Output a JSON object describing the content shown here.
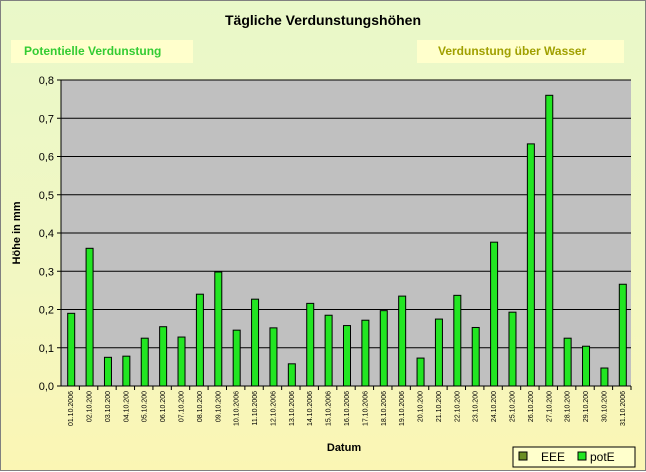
{
  "chart_data": {
    "type": "bar",
    "title": "Tägliche Verdunstungshöhen",
    "xlabel": "Datum",
    "ylabel": "Höhe in mm",
    "ylim": [
      0,
      0.8
    ],
    "ytick_step": 0.1,
    "ytick_labels": [
      "0,0",
      "0,1",
      "0,2",
      "0,3",
      "0,4",
      "0,5",
      "0,6",
      "0,7",
      "0,8"
    ],
    "grid": true,
    "legend_position": "bottom-right",
    "categories": [
      "01.10.2006",
      "02.10.200",
      "03.10.200",
      "04.10.200",
      "05.10.200",
      "06.10.200",
      "07.10.200",
      "08.10.200",
      "09.10.200",
      "10.10.2006",
      "11.10.2006",
      "12.10.2006",
      "13.10.2006",
      "14.10.2006",
      "15.10.2006",
      "16.10.2006",
      "17.10.2006",
      "18.10.2006",
      "19.10.2006",
      "20.10.200",
      "21.10.200",
      "22.10.200",
      "23.10.200",
      "24.10.200",
      "25.10.200",
      "26.10.200",
      "27.10.200",
      "28.10.200",
      "29.10.200",
      "30.10.200",
      "31.10.2006"
    ],
    "series": [
      {
        "name": "EEE",
        "color": "#6b8e23",
        "values": [
          0,
          0,
          0,
          0,
          0,
          0,
          0,
          0,
          0,
          0,
          0,
          0,
          0,
          0,
          0,
          0,
          0,
          0,
          0,
          0,
          0,
          0,
          0,
          0,
          0,
          0,
          0,
          0,
          0,
          0,
          0
        ]
      },
      {
        "name": "potE",
        "color": "#22e622",
        "values": [
          0.19,
          0.36,
          0.075,
          0.078,
          0.125,
          0.155,
          0.128,
          0.24,
          0.298,
          0.146,
          0.227,
          0.152,
          0.058,
          0.216,
          0.185,
          0.158,
          0.172,
          0.197,
          0.235,
          0.073,
          0.175,
          0.237,
          0.153,
          0.376,
          0.193,
          0.633,
          0.76,
          0.125,
          0.104,
          0.047,
          0.266
        ]
      }
    ],
    "annotations": [
      {
        "text": "Potentielle Verdunstung",
        "color": "#33cc33",
        "background": "#ffffcc"
      },
      {
        "text": "Verdunstung über Wasser",
        "color": "#a0a000",
        "background": "#ffffcc"
      }
    ],
    "plot_background": "#c0c0c0"
  }
}
